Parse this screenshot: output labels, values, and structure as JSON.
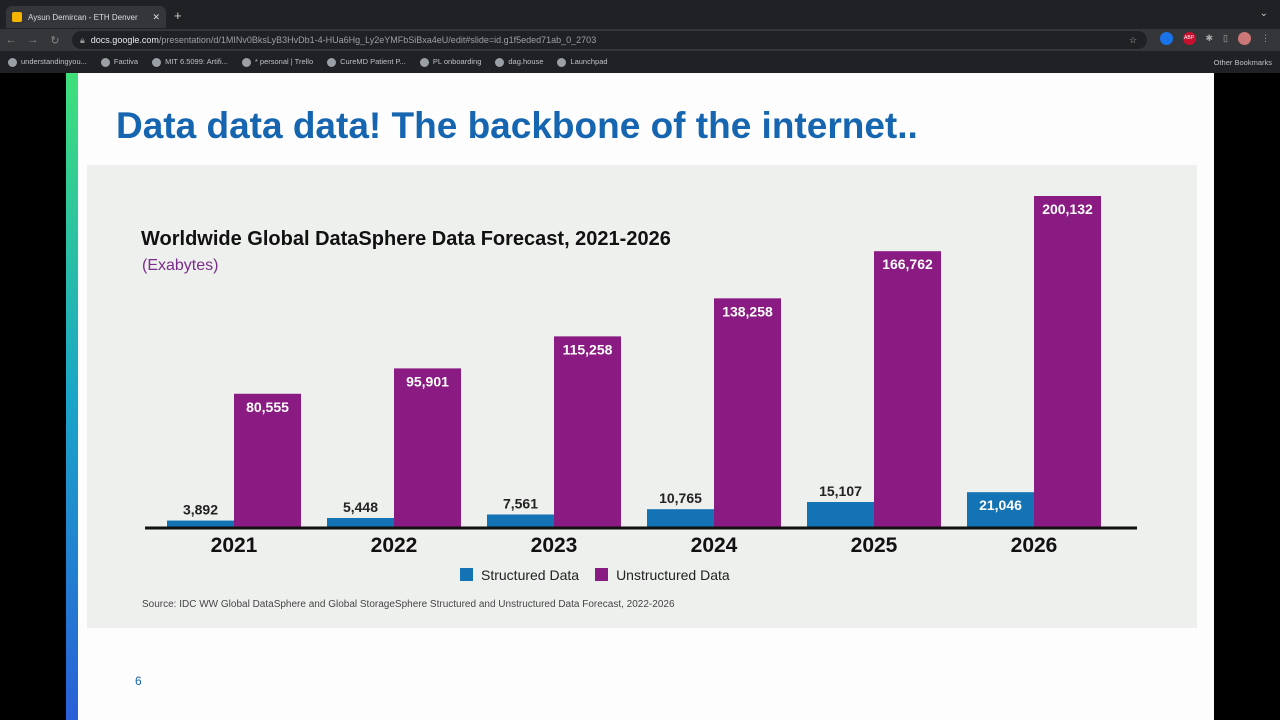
{
  "browser": {
    "tab_title": "Aysun Demircan - ETH Denver",
    "url_host": "docs.google.com",
    "url_path": "/presentation/d/1MINv0BksLyB3HvDb1-4-HUa6Hg_Ly2eYMFbSiBxa4eU/edit#slide=id.g1f5eded71ab_0_2703",
    "bookmarks": [
      "understandingyou...",
      "Factiva",
      "MIT 6.5099: Artifi...",
      "* personal | Trello",
      "CureMD Patient P...",
      "PL onboarding",
      "dag.house",
      "Launchpad"
    ],
    "other_bookmarks": "Other Bookmarks",
    "ext_abp": "ABP"
  },
  "slide": {
    "title": "Data data data! The backbone of the internet..",
    "page_number": "6"
  },
  "colors": {
    "structured": "#1373b4",
    "unstructured": "#8a1b82",
    "title": "#1565b0"
  },
  "chart_data": {
    "type": "bar",
    "title": "Worldwide Global DataSphere Data Forecast, 2021-2026",
    "subtitle": "(Exabytes)",
    "categories": [
      "2021",
      "2022",
      "2023",
      "2024",
      "2025",
      "2026"
    ],
    "series": [
      {
        "name": "Structured Data",
        "values": [
          3892,
          5448,
          7561,
          10765,
          15107,
          21046
        ],
        "labels": [
          "3,892",
          "5,448",
          "7,561",
          "10,765",
          "15,107",
          "21,046"
        ]
      },
      {
        "name": "Unstructured Data",
        "values": [
          80555,
          95901,
          115258,
          138258,
          166762,
          200132
        ],
        "labels": [
          "80,555",
          "95,901",
          "115,258",
          "138,258",
          "166,762",
          "200,132"
        ]
      }
    ],
    "ylim": [
      0,
      200132
    ],
    "legend": "bottom",
    "grid": false,
    "source": "Source: IDC WW Global DataSphere and Global StorageSphere Structured and Unstructured Data Forecast, 2022-2026"
  }
}
